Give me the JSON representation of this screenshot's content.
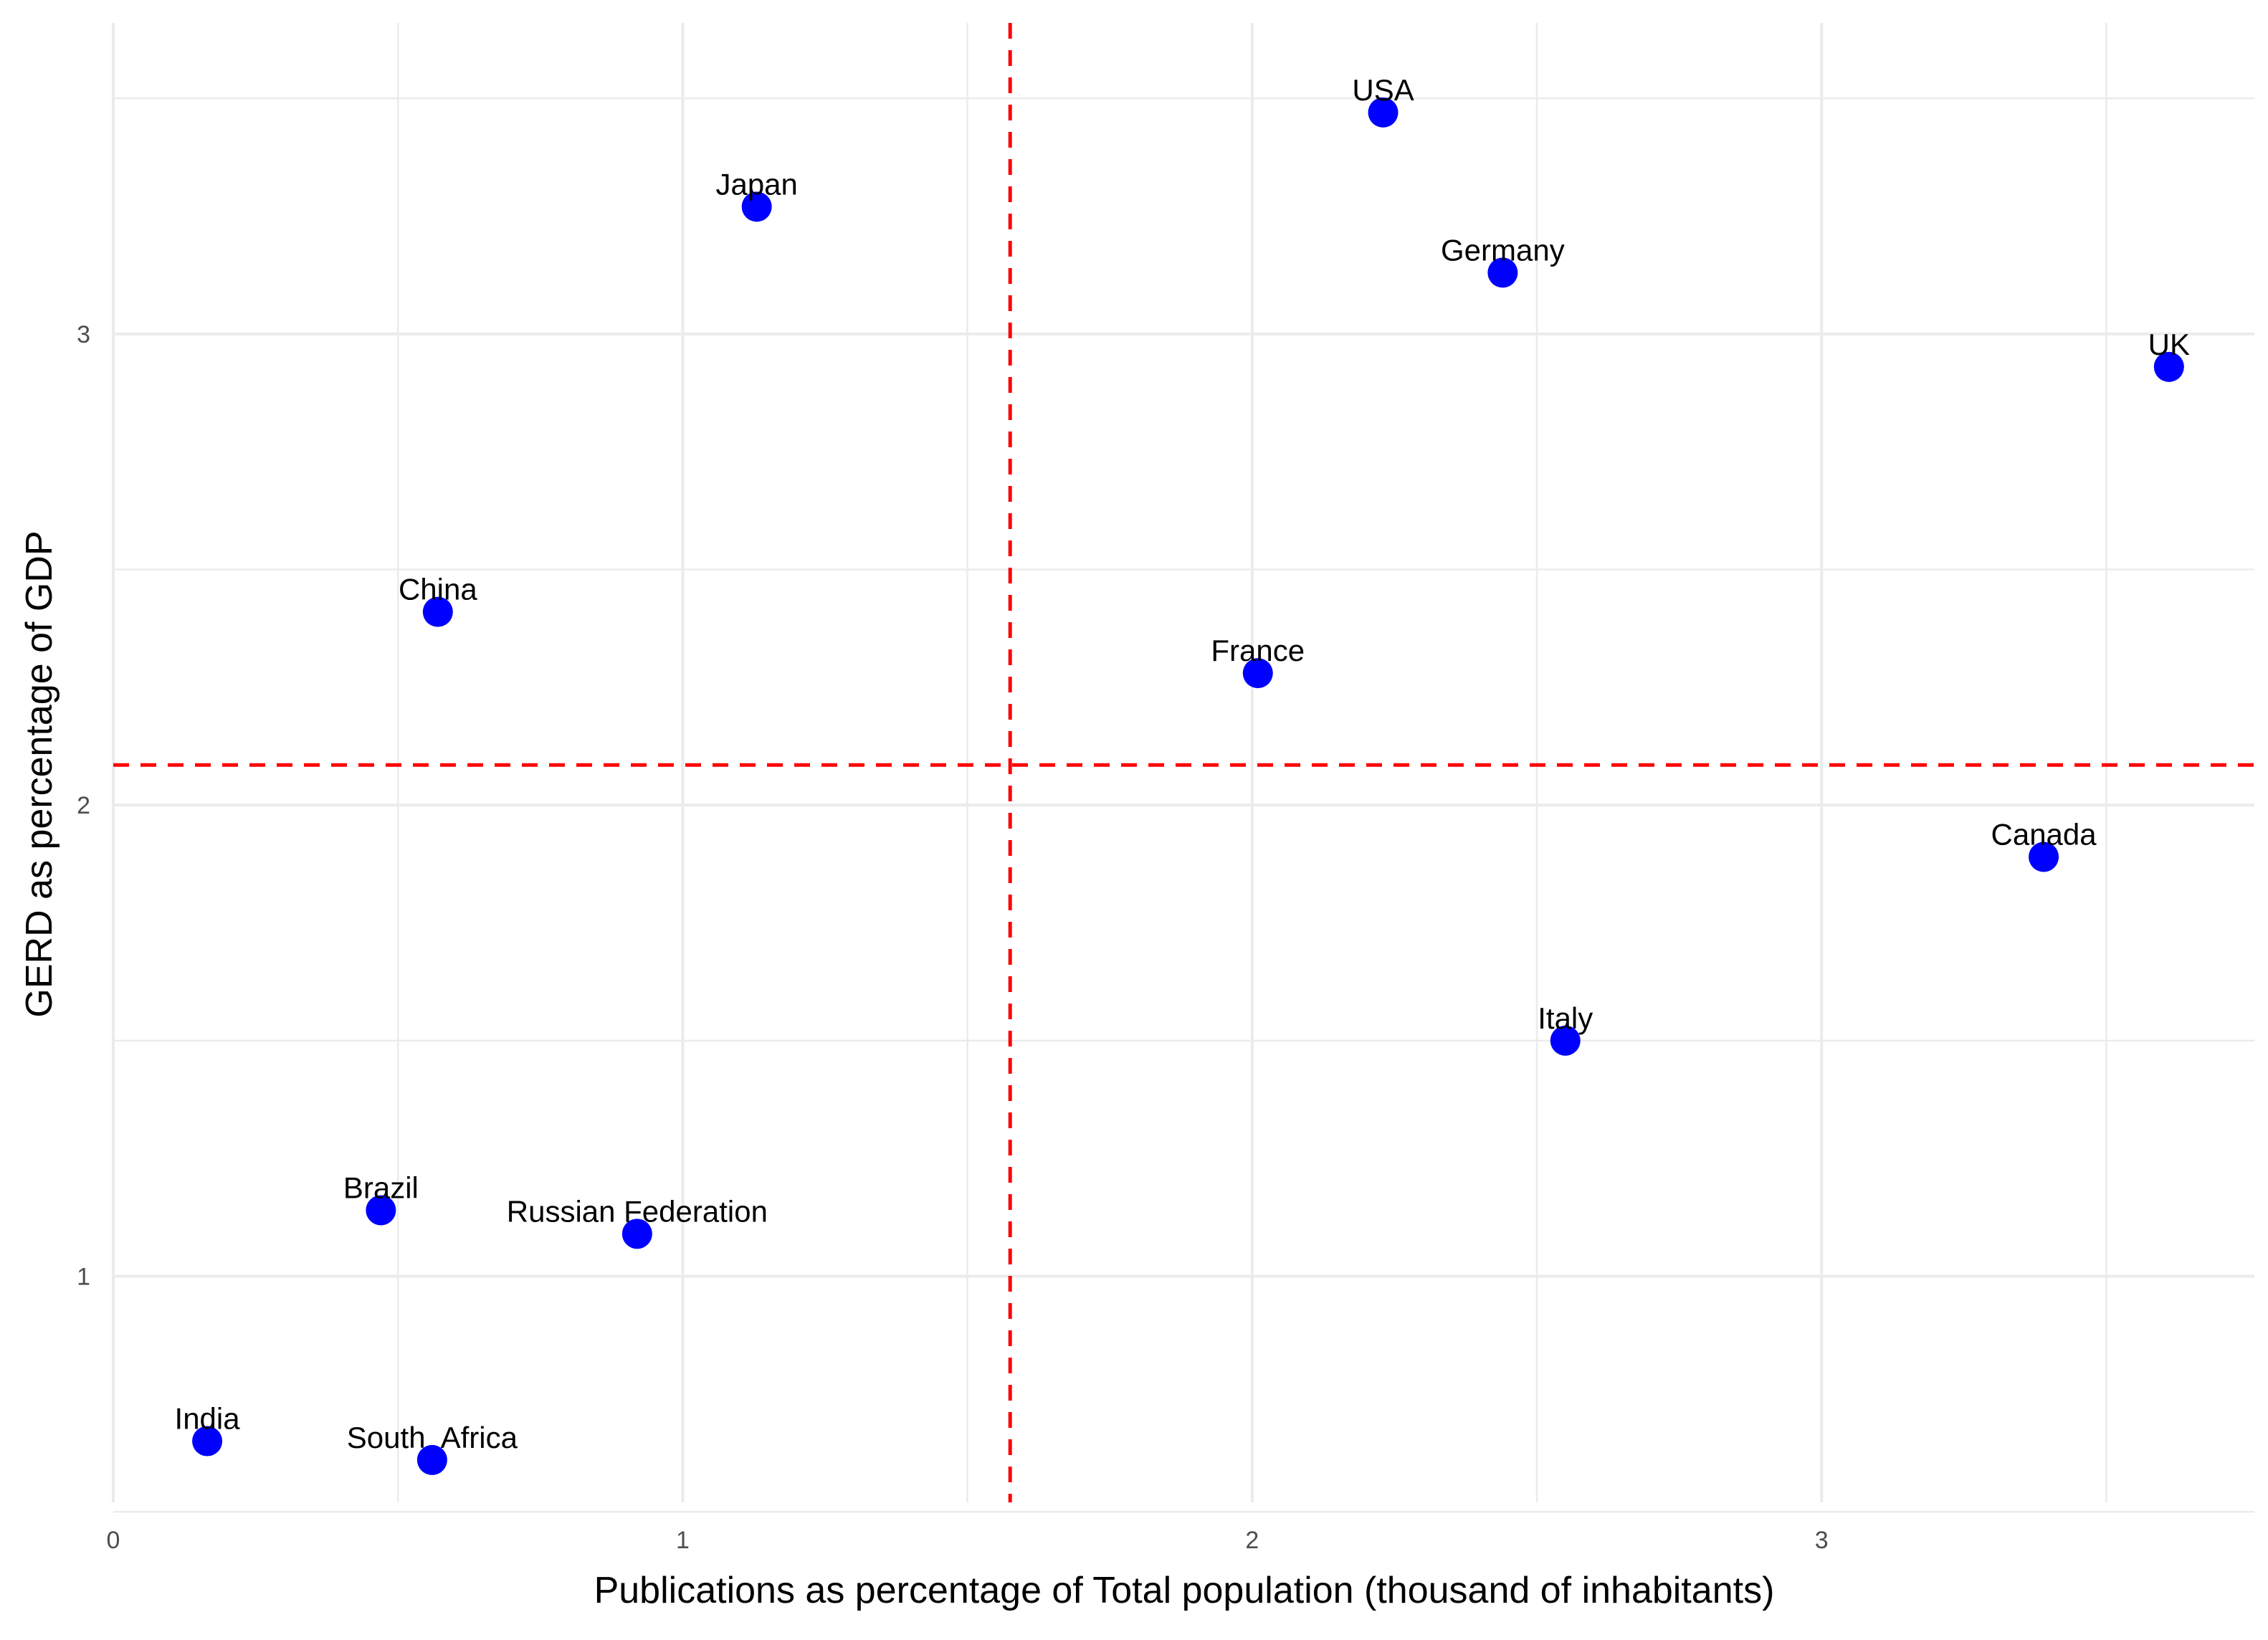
{
  "chart_data": {
    "type": "scatter",
    "title": "",
    "xlabel": "Publications as percentage of Total population (thousand of inhabitants)",
    "ylabel": "GERD as percentage of GDP",
    "xlim": [
      0,
      3.76
    ],
    "ylim": [
      0.52,
      3.66
    ],
    "x_ticks": [
      0,
      1,
      2,
      3
    ],
    "x_tick_labels": [
      "0",
      "1",
      "2",
      "3"
    ],
    "x_minor": [
      0.5,
      1.5,
      2.5,
      3.5
    ],
    "y_ticks": [
      1,
      2,
      3
    ],
    "y_tick_labels": [
      "1",
      "2",
      "3"
    ],
    "y_minor": [
      0.5,
      1.5,
      2.5,
      3.5
    ],
    "grid": true,
    "point_color": "#0000ff",
    "reference_lines": {
      "color": "#ff0000",
      "style": "dashed",
      "vertical_x": 1.575,
      "horizontal_y": 2.085
    },
    "points": [
      {
        "name": "USA",
        "x": 2.23,
        "y": 3.47
      },
      {
        "name": "Japan",
        "x": 1.13,
        "y": 3.27
      },
      {
        "name": "Germany",
        "x": 2.44,
        "y": 3.13
      },
      {
        "name": "UK",
        "x": 3.61,
        "y": 2.93
      },
      {
        "name": "China",
        "x": 0.57,
        "y": 2.41
      },
      {
        "name": "France",
        "x": 2.01,
        "y": 2.28
      },
      {
        "name": "Canada",
        "x": 3.39,
        "y": 1.89
      },
      {
        "name": "Italy",
        "x": 2.55,
        "y": 1.5
      },
      {
        "name": "Brazil",
        "x": 0.47,
        "y": 1.14
      },
      {
        "name": "Russian Federation",
        "x": 0.92,
        "y": 1.09
      },
      {
        "name": "India",
        "x": 0.165,
        "y": 0.65
      },
      {
        "name": "South  Africa",
        "x": 0.56,
        "y": 0.61
      }
    ]
  }
}
